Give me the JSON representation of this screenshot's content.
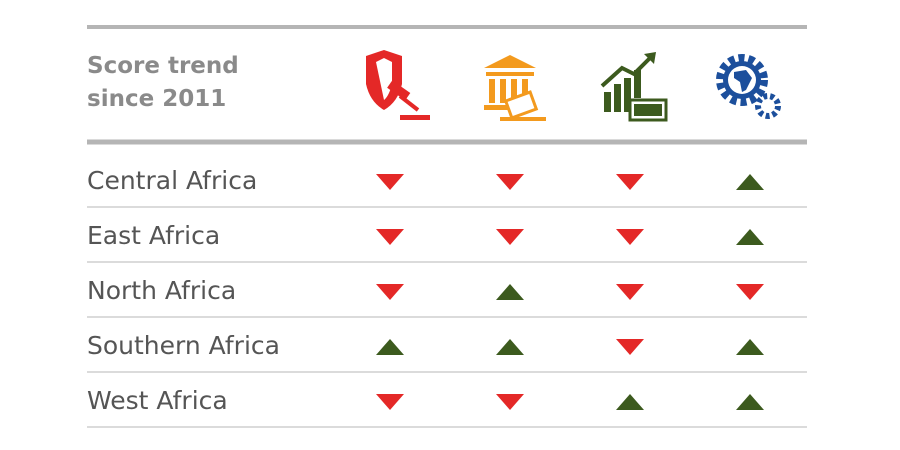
{
  "header": {
    "title_lines": [
      "Score trend",
      "since 2011"
    ]
  },
  "columns": 4,
  "up_color": "#3c5a1e",
  "down_color": "#e42827",
  "rows": [
    {
      "label": "Central Africa",
      "trends": [
        "down",
        "down",
        "down",
        "up"
      ]
    },
    {
      "label": "East Africa",
      "trends": [
        "down",
        "down",
        "down",
        "up"
      ]
    },
    {
      "label": "North Africa",
      "trends": [
        "down",
        "up",
        "down",
        "down"
      ]
    },
    {
      "label": "Southern Africa",
      "trends": [
        "up",
        "up",
        "down",
        "up"
      ]
    },
    {
      "label": "West Africa",
      "trends": [
        "down",
        "down",
        "up",
        "up"
      ]
    }
  ]
}
